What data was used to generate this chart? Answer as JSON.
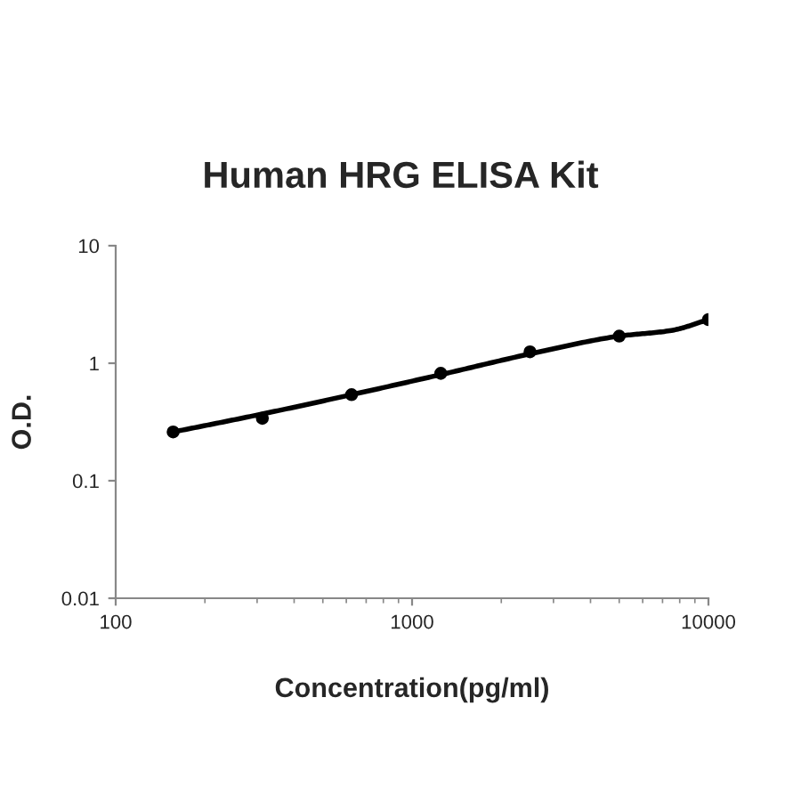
{
  "chart_data": {
    "type": "line",
    "title": "Human HRG ELISA Kit",
    "xlabel": "Concentration(pg/ml)",
    "ylabel": "O.D.",
    "log": "xy",
    "series": [
      {
        "type": "scatter",
        "marker": "circle",
        "color": "#000000",
        "x": [
          156.25,
          312.5,
          625,
          1250,
          2500,
          5000,
          10000
        ],
        "values": [
          0.26,
          0.34,
          0.54,
          0.82,
          1.25,
          1.7,
          2.35
        ]
      },
      {
        "marker": "none",
        "color": "#000000",
        "x": [
          156.25,
          312.5,
          625,
          1250,
          2500,
          5000,
          7500,
          10000
        ],
        "values": [
          0.26,
          0.37,
          0.54,
          0.8,
          1.2,
          1.7,
          1.9,
          2.35
        ]
      }
    ],
    "xlim": [
      100,
      10000
    ],
    "ylim": [
      0.01,
      10
    ],
    "xticks": [
      100,
      1000,
      10000
    ],
    "yticks": [
      0.01,
      0.1,
      1,
      10
    ],
    "grid": false,
    "legend": false,
    "line_style": "solid"
  }
}
